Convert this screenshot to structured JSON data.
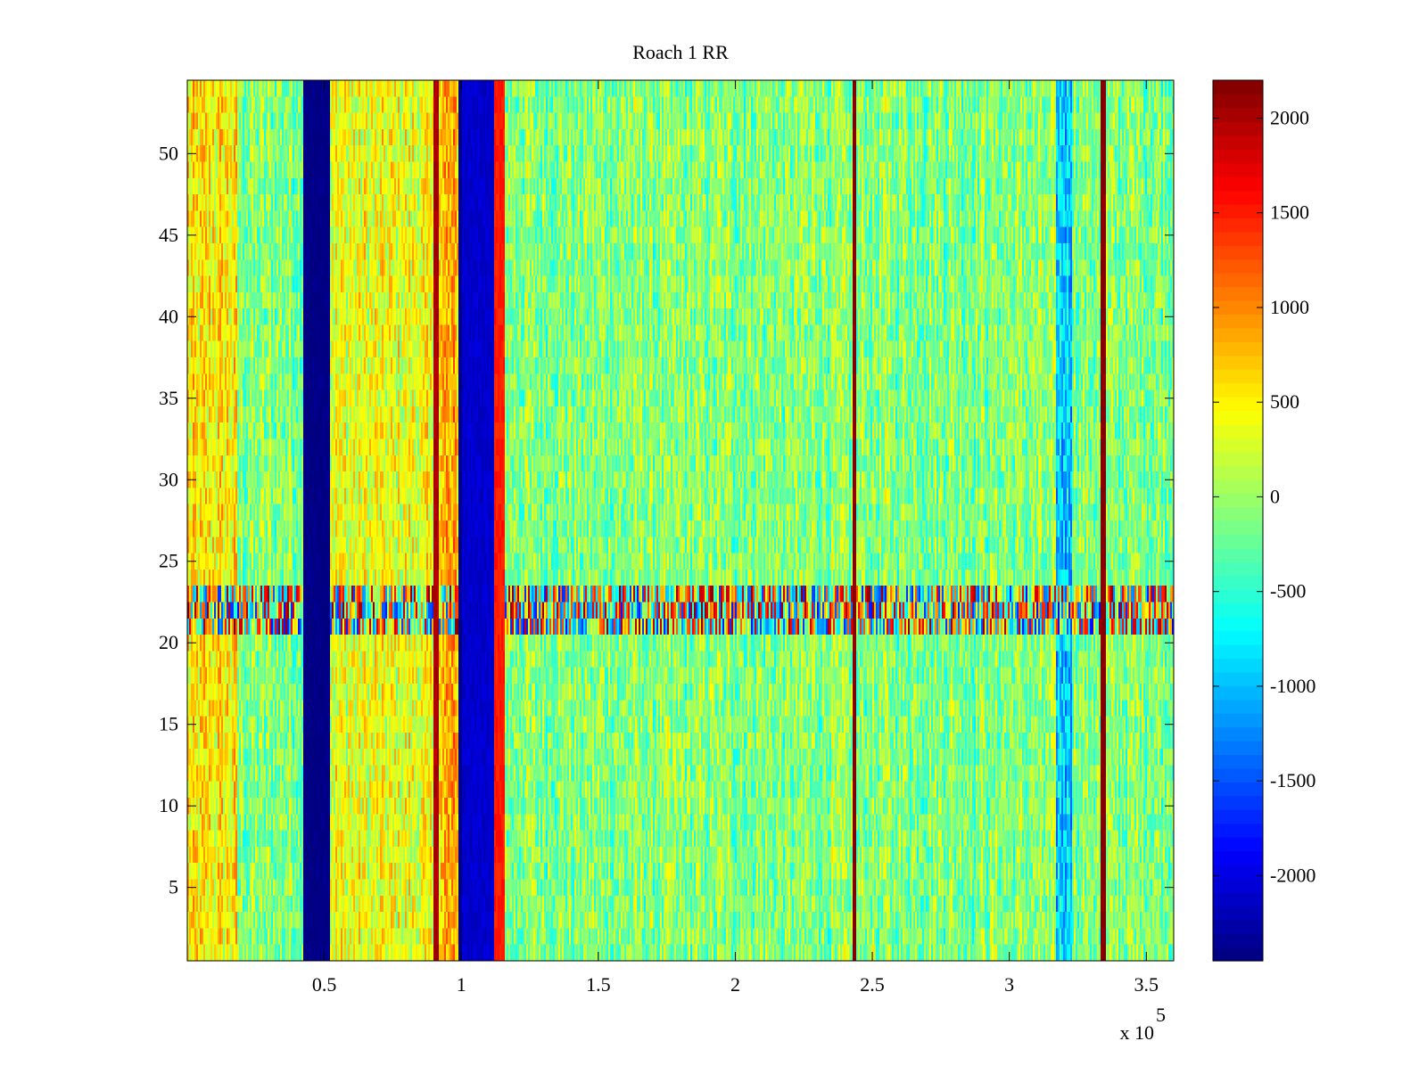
{
  "chart_data": {
    "type": "heatmap",
    "title": "Roach 1 RR",
    "colormap": "jet",
    "x": {
      "range": [
        0,
        360000
      ],
      "ticks": [
        50000,
        100000,
        150000,
        200000,
        250000,
        300000,
        350000
      ],
      "tick_labels": [
        "0.5",
        "1",
        "1.5",
        "2",
        "2.5",
        "3",
        "3.5"
      ],
      "exponent_label": "x 10",
      "exponent_power": "5"
    },
    "y": {
      "range": [
        0.5,
        54.5
      ],
      "ticks": [
        5,
        10,
        15,
        20,
        25,
        30,
        35,
        40,
        45,
        50
      ],
      "tick_labels": [
        "5",
        "10",
        "15",
        "20",
        "25",
        "30",
        "35",
        "40",
        "45",
        "50"
      ]
    },
    "colorbar": {
      "range": [
        -2450,
        2200
      ],
      "ticks": [
        -2000,
        -1500,
        -1000,
        -500,
        0,
        500,
        1000,
        1500,
        2000
      ],
      "tick_labels": [
        "-2000",
        "-1500",
        "-1000",
        "-500",
        "0",
        "500",
        "1000",
        "1500",
        "2000"
      ]
    },
    "background_mean": -100,
    "noise_amplitude": 550,
    "column_features": [
      {
        "x_start": 0,
        "x_end": 18000,
        "value": 500,
        "note": "warm left edge"
      },
      {
        "x_start": 42000,
        "x_end": 52000,
        "value": -2450,
        "note": "dark blue band"
      },
      {
        "x_start": 52000,
        "x_end": 90000,
        "value": 350,
        "note": "yellow region"
      },
      {
        "x_start": 90000,
        "x_end": 92000,
        "value": 2000,
        "note": "dark red line"
      },
      {
        "x_start": 92000,
        "x_end": 99000,
        "value": 800,
        "note": "orange band"
      },
      {
        "x_start": 99000,
        "x_end": 100500,
        "value": -2400,
        "note": "thin blue line"
      },
      {
        "x_start": 100500,
        "x_end": 112000,
        "value": -2100,
        "note": "blue band"
      },
      {
        "x_start": 112000,
        "x_end": 116000,
        "value": 1500,
        "note": "red edge"
      },
      {
        "x_start": 242500,
        "x_end": 244000,
        "value": 2200,
        "note": "dark red line"
      },
      {
        "x_start": 317000,
        "x_end": 323000,
        "value": -900,
        "note": "cyan band"
      },
      {
        "x_start": 333500,
        "x_end": 335000,
        "value": 2200,
        "note": "dark red line"
      }
    ],
    "row_features": [
      {
        "y_start": 20.5,
        "y_end": 23.5,
        "amplitude": 1800,
        "note": "high-variance stripe rows 21-23"
      }
    ]
  }
}
